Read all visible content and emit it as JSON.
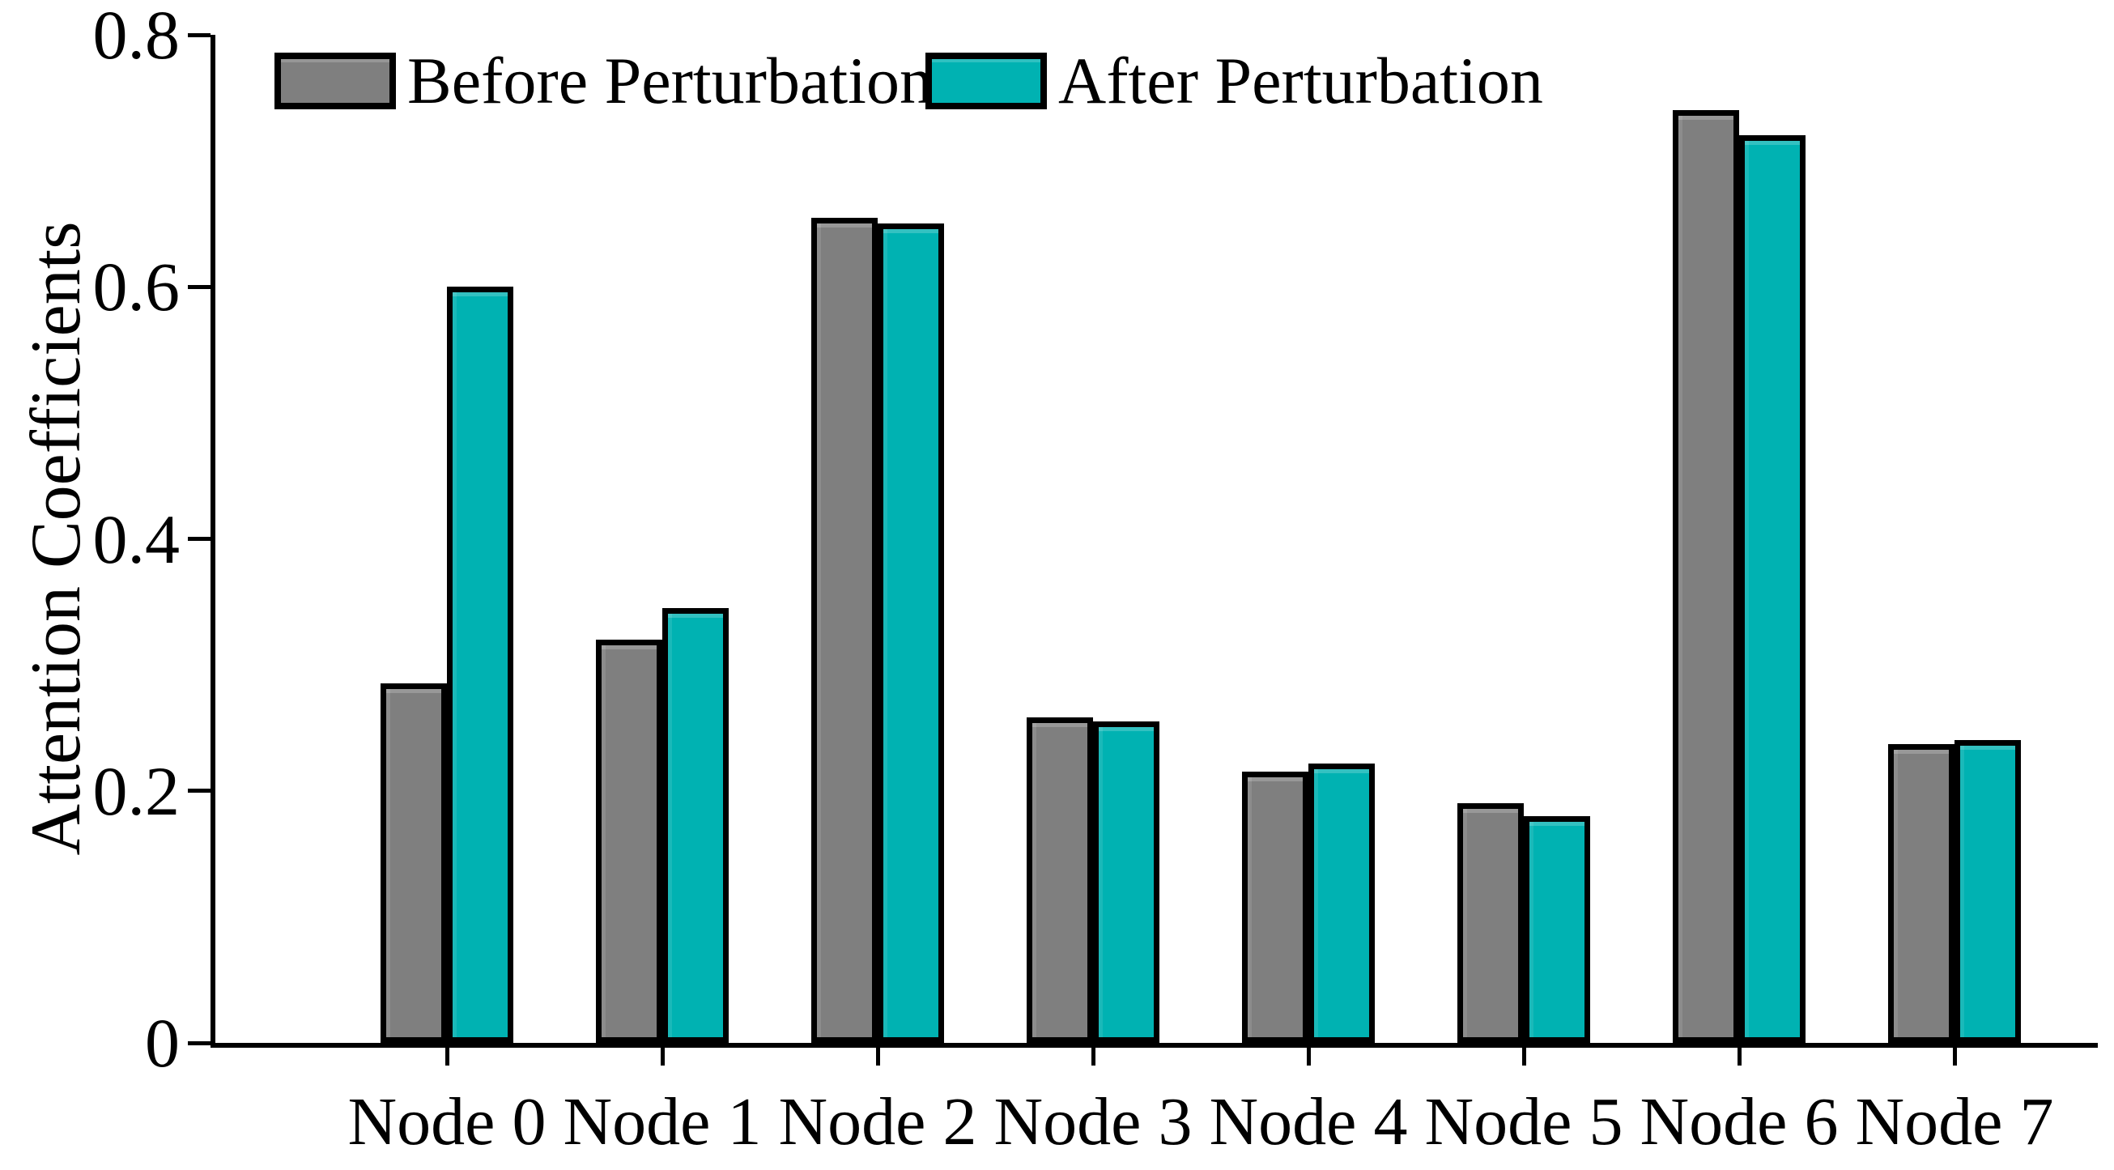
{
  "figure": {
    "ylabel": "Attention Coefficients"
  },
  "chart_data": {
    "type": "bar",
    "title": "",
    "xlabel": "",
    "ylabel": "Attention Coefficients",
    "categories": [
      "Node 0",
      "Node 1",
      "Node 2",
      "Node 3",
      "Node 4",
      "Node 5",
      "Node 6",
      "Node 7"
    ],
    "series": [
      {
        "name": "Before Perturbation",
        "color": "#7f7f7f",
        "values": [
          0.285,
          0.32,
          0.655,
          0.258,
          0.215,
          0.19,
          0.74,
          0.237
        ]
      },
      {
        "name": "After Perturbation",
        "color": "#00b2b2",
        "values": [
          0.6,
          0.345,
          0.65,
          0.255,
          0.222,
          0.18,
          0.72,
          0.24
        ]
      }
    ],
    "ylim": [
      0,
      0.8
    ],
    "yticks": [
      0,
      0.2,
      0.4,
      0.6,
      0.8
    ],
    "ytick_labels": [
      "0",
      "0.2",
      "0.4",
      "0.6",
      "0.8"
    ],
    "grid": false,
    "legend_position": "top-inside",
    "bar_edge_color": "#000000",
    "axis_color": "#000000"
  }
}
